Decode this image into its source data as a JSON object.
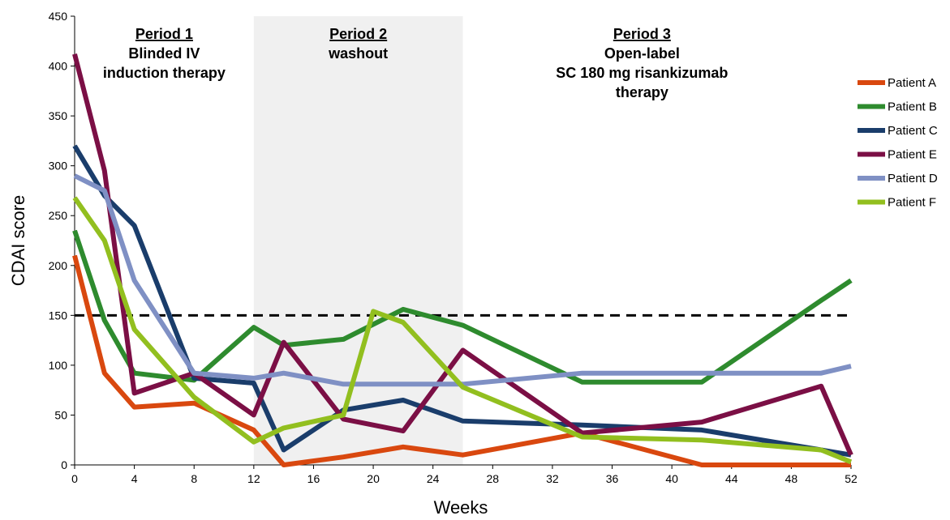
{
  "chart_data": {
    "type": "line",
    "xlabel": "Weeks",
    "ylabel": "CDAI score",
    "xlim": [
      0,
      52
    ],
    "ylim": [
      0,
      450
    ],
    "x_ticks": [
      0,
      4,
      8,
      12,
      16,
      20,
      24,
      28,
      32,
      36,
      40,
      44,
      48,
      52
    ],
    "y_ticks": [
      0,
      50,
      100,
      150,
      200,
      250,
      300,
      350,
      400,
      450
    ],
    "reference_line": {
      "y": 150,
      "style": "dashed",
      "color": "#000000"
    },
    "shaded_region": {
      "x": [
        12,
        26
      ],
      "color": "#f0f0f0"
    },
    "periods": [
      {
        "title": "Period 1",
        "lines": [
          "Blinded IV",
          "induction therapy"
        ],
        "x_center": 6
      },
      {
        "title": "Period 2",
        "lines": [
          "washout"
        ],
        "x_center": 19
      },
      {
        "title": "Period 3",
        "lines": [
          "Open-label",
          "SC 180 mg risankizumab",
          "therapy"
        ],
        "x_center": 38
      }
    ],
    "legend_position": "right",
    "series": [
      {
        "name": "Patient A",
        "color": "#d9480f",
        "x": [
          0,
          2,
          4,
          8,
          12,
          14,
          18,
          22,
          26,
          34,
          42,
          50,
          52
        ],
        "y": [
          210,
          92,
          58,
          62,
          35,
          0,
          8,
          18,
          10,
          32,
          0,
          0,
          0
        ]
      },
      {
        "name": "Patient B",
        "color": "#2e8b2e",
        "x": [
          0,
          2,
          4,
          8,
          12,
          14,
          18,
          22,
          26,
          34,
          42,
          50,
          52
        ],
        "y": [
          235,
          145,
          92,
          85,
          138,
          120,
          126,
          156,
          140,
          83,
          83,
          165,
          185
        ]
      },
      {
        "name": "Patient C",
        "color": "#1a3d6b",
        "x": [
          0,
          2,
          4,
          8,
          12,
          14,
          18,
          22,
          26,
          34,
          42,
          50,
          52
        ],
        "y": [
          320,
          270,
          240,
          87,
          82,
          15,
          55,
          65,
          44,
          40,
          35,
          15,
          10
        ]
      },
      {
        "name": "Patient E",
        "color": "#7b0f45",
        "x": [
          0,
          2,
          4,
          8,
          12,
          14,
          18,
          22,
          26,
          34,
          42,
          50,
          52
        ],
        "y": [
          412,
          295,
          72,
          92,
          50,
          123,
          46,
          34,
          115,
          32,
          43,
          79,
          10
        ]
      },
      {
        "name": "Patient D",
        "color": "#7f90c4",
        "x": [
          0,
          2,
          4,
          8,
          12,
          14,
          18,
          22,
          26,
          34,
          42,
          50,
          52
        ],
        "y": [
          290,
          275,
          185,
          92,
          87,
          92,
          81,
          81,
          81,
          92,
          92,
          92,
          99
        ]
      },
      {
        "name": "Patient F",
        "color": "#92bf1f",
        "x": [
          0,
          2,
          4,
          8,
          12,
          14,
          18,
          20,
          22,
          26,
          34,
          42,
          50,
          52
        ],
        "y": [
          268,
          225,
          136,
          68,
          23,
          37,
          50,
          154,
          143,
          78,
          28,
          25,
          15,
          3
        ]
      }
    ]
  }
}
